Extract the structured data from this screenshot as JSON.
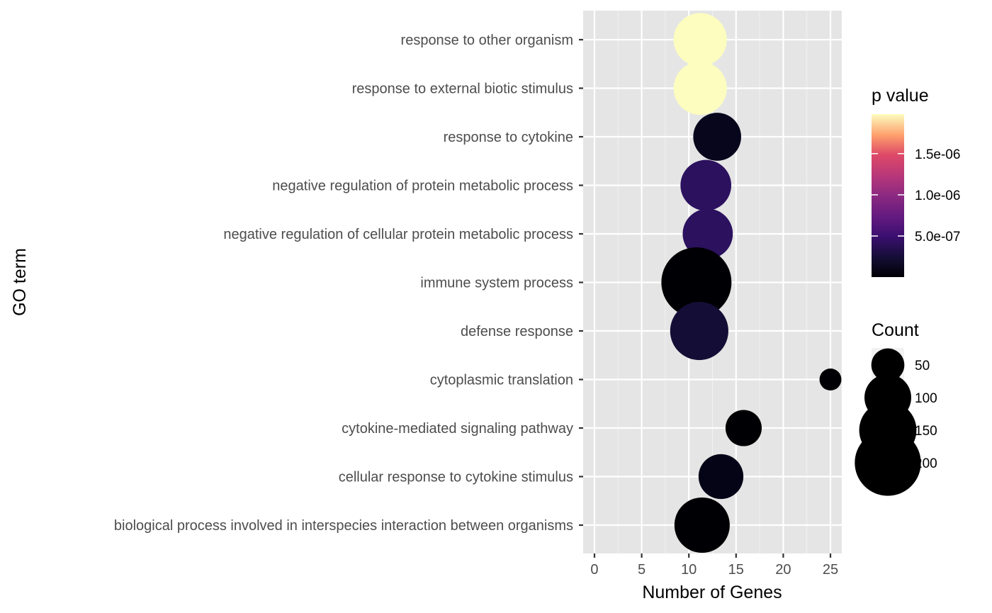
{
  "chart_data": {
    "type": "scatter",
    "title": "",
    "xlabel": "Number of Genes",
    "ylabel": "GO term",
    "xlim": [
      -1.2,
      26.2
    ],
    "xticks": [
      0,
      5,
      10,
      15,
      20,
      25
    ],
    "grid": true,
    "terms": [
      "response to other organism",
      "response to external biotic stimulus",
      "response to cytokine",
      "negative regulation of protein metabolic process",
      "negative regulation of cellular protein metabolic process",
      "immune system process",
      "defense response",
      "cytoplasmic translation",
      "cytokine-mediated signaling pathway",
      "cellular response to cytokine stimulus",
      "biological process involved in interspecies interaction between organisms"
    ],
    "points": [
      {
        "term": "response to other organism",
        "genes": 11.2,
        "count": 130,
        "p": 1.98e-06,
        "color": "#fcfdbf"
      },
      {
        "term": "response to external biotic stimulus",
        "genes": 11.2,
        "count": 130,
        "p": 1.98e-06,
        "color": "#fcfdbf"
      },
      {
        "term": "response to cytokine",
        "genes": 13.0,
        "count": 105,
        "p": 6e-08,
        "color": "#07061c"
      },
      {
        "term": "negative regulation of protein metabolic process",
        "genes": 11.8,
        "count": 118,
        "p": 4.6e-07,
        "color": "#2c115f"
      },
      {
        "term": "negative regulation of cellular protein metabolic process",
        "genes": 12.0,
        "count": 115,
        "p": 4.6e-07,
        "color": "#2c115f"
      },
      {
        "term": "immune system process",
        "genes": 10.8,
        "count": 225,
        "p": 1e-09,
        "color": "#000004"
      },
      {
        "term": "defense response",
        "genes": 11.1,
        "count": 155,
        "p": 2.3e-07,
        "color": "#140e36"
      },
      {
        "term": "cytoplasmic translation",
        "genes": 25.0,
        "count": 22,
        "p": 1e-09,
        "color": "#000004"
      },
      {
        "term": "cytokine-mediated signaling pathway",
        "genes": 15.8,
        "count": 60,
        "p": 1e-09,
        "color": "#000004"
      },
      {
        "term": "cellular response to cytokine stimulus",
        "genes": 13.4,
        "count": 92,
        "p": 4e-08,
        "color": "#050417"
      },
      {
        "term": "biological process involved in interspecies interaction between organisms",
        "genes": 11.4,
        "count": 140,
        "p": 1e-09,
        "color": "#000004"
      }
    ],
    "legend_color": {
      "title": "p value",
      "range": [
        1e-09,
        1.98e-06
      ],
      "ticks": [
        {
          "value": 5e-07,
          "label": "5.0e-07"
        },
        {
          "value": 1e-06,
          "label": "1.0e-06"
        },
        {
          "value": 1.5e-06,
          "label": "1.5e-06"
        }
      ],
      "colormap": "magma"
    },
    "legend_size": {
      "title": "Count",
      "entries": [
        {
          "value": 50,
          "label": "50"
        },
        {
          "value": 100,
          "label": "100"
        },
        {
          "value": 150,
          "label": "150"
        },
        {
          "value": 200,
          "label": "200"
        }
      ]
    },
    "legend_placement": "right",
    "colors": {
      "panel_background": "#e5e5e5",
      "grid": "#ffffff",
      "tick_text": "#4d4d4d"
    }
  }
}
